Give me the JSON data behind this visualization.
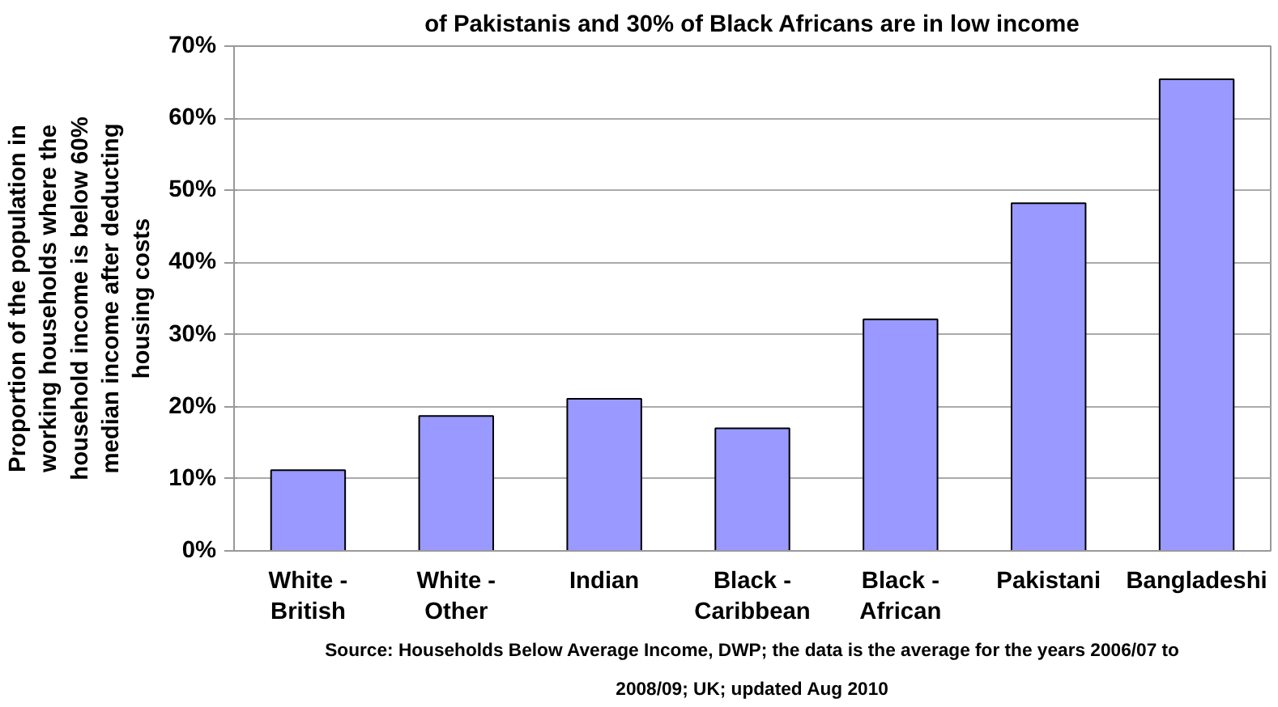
{
  "chart_data": {
    "type": "bar",
    "title": "of Pakistanis and 30% of Black Africans are in low income",
    "ylabel": "Proportion of the population in working households where the household income is below 60% median income after deducting housing costs",
    "categories": [
      "White - British",
      "White - Other",
      "Indian",
      "Black - Caribbean",
      "Black - African",
      "Pakistani",
      "Bangladeshi"
    ],
    "values": [
      11.2,
      18.7,
      21.1,
      17.0,
      32.1,
      48.2,
      65.4
    ],
    "color": "#9999ff",
    "ylim": [
      0,
      70
    ],
    "yticks": [
      {
        "value": 0,
        "label": "0%"
      },
      {
        "value": 10,
        "label": "10%"
      },
      {
        "value": 20,
        "label": "20%"
      },
      {
        "value": 30,
        "label": "30%"
      },
      {
        "value": 40,
        "label": "40%"
      },
      {
        "value": 50,
        "label": "50%"
      },
      {
        "value": 60,
        "label": "60%"
      },
      {
        "value": 70,
        "label": "70%"
      }
    ],
    "grid": "y",
    "annotations": [
      "Source: Households Below Average Income, DWP; the data is the average for the years 2006/07 to 2008/09; UK; updated Aug 2010"
    ]
  }
}
